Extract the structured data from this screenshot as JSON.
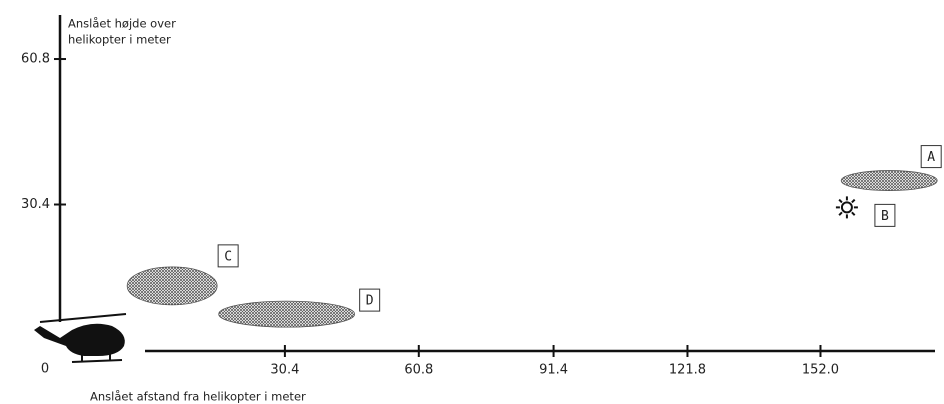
{
  "chart_data": {
    "type": "scatter",
    "y_title": [
      "Anslået højde over",
      "helikopter i meter"
    ],
    "x_title": "Anslået afstand fra helikopter i meter",
    "origin_label": "0",
    "xlim": [
      0,
      178
    ],
    "ylim": [
      0,
      70
    ],
    "xticks": [
      30.4,
      60.8,
      91.4,
      121.8,
      {
        "value": 152,
        "label": "152.0"
      }
    ],
    "yticks": [
      30.4,
      60.8
    ],
    "points": [
      {
        "label": "A",
        "marker": "blob",
        "x": 167.6,
        "y": 35.4
      },
      {
        "label": "B",
        "marker": "sun",
        "x": 158,
        "y": 29.8
      },
      {
        "label": "C",
        "marker": "blob",
        "x": 4.8,
        "y": 13.4
      },
      {
        "label": "D",
        "marker": "blob",
        "x": 30.8,
        "y": 7.5
      }
    ]
  }
}
